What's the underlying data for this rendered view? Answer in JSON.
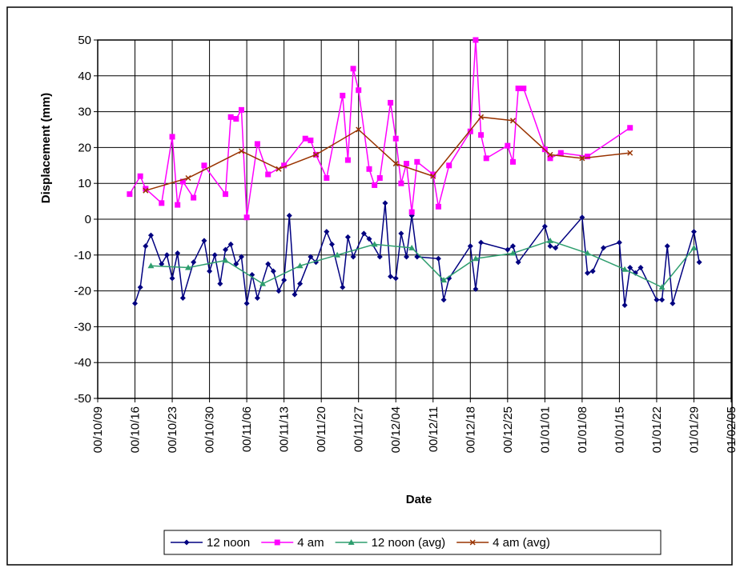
{
  "chart_data": {
    "type": "line",
    "xlabel": "Date",
    "ylabel": "Displacement (mm)",
    "xlim": [
      "00/10/09",
      "01/02/05"
    ],
    "xticks": [
      "00/10/09",
      "00/10/16",
      "00/10/23",
      "00/10/30",
      "00/11/06",
      "00/11/13",
      "00/11/20",
      "00/11/27",
      "00/12/04",
      "00/12/11",
      "00/12/18",
      "00/12/25",
      "01/01/01",
      "01/01/08",
      "01/01/15",
      "01/01/22",
      "01/01/29",
      "01/02/05"
    ],
    "ylim": [
      -50,
      50
    ],
    "yticks": [
      -50,
      -40,
      -30,
      -20,
      -10,
      0,
      10,
      20,
      30,
      40,
      50
    ],
    "grid": true,
    "series": [
      {
        "name": "12 noon",
        "color": "#000080",
        "marker": "diamond",
        "x": [
          "00/10/16",
          "00/10/17",
          "00/10/18",
          "00/10/19",
          "00/10/21",
          "00/10/22",
          "00/10/23",
          "00/10/24",
          "00/10/25",
          "00/10/27",
          "00/10/29",
          "00/10/30",
          "00/10/31",
          "00/11/01",
          "00/11/02",
          "00/11/03",
          "00/11/04",
          "00/11/05",
          "00/11/06",
          "00/11/07",
          "00/11/08",
          "00/11/10",
          "00/11/11",
          "00/11/12",
          "00/11/13",
          "00/11/14",
          "00/11/15",
          "00/11/16",
          "00/11/18",
          "00/11/19",
          "00/11/21",
          "00/11/22",
          "00/11/24",
          "00/11/25",
          "00/11/26",
          "00/11/28",
          "00/11/29",
          "00/12/01",
          "00/12/02",
          "00/12/03",
          "00/12/04",
          "00/12/05",
          "00/12/06",
          "00/12/07",
          "00/12/08",
          "00/12/12",
          "00/12/13",
          "00/12/14",
          "00/12/18",
          "00/12/19",
          "00/12/20",
          "00/12/25",
          "00/12/26",
          "00/12/27",
          "01/01/01",
          "01/01/02",
          "01/01/03",
          "01/01/08",
          "01/01/09",
          "01/01/10",
          "01/01/12",
          "01/01/15",
          "01/01/16",
          "01/01/17",
          "01/01/18",
          "01/01/19",
          "01/01/22",
          "01/01/23",
          "01/01/24",
          "01/01/25",
          "01/01/29",
          "01/01/30"
        ],
        "values": [
          -23.5,
          -19,
          -7.5,
          -4.5,
          -12.5,
          -10,
          -16.5,
          -9.5,
          -22,
          -12,
          -6,
          -14.5,
          -10,
          -18,
          -8.5,
          -7,
          -12.5,
          -10.5,
          -23.5,
          -15.5,
          -22,
          -12.5,
          -14.5,
          -20,
          -17,
          1,
          -21,
          -18,
          -10.5,
          -12,
          -3.5,
          -7,
          -19,
          -5,
          -10.5,
          -4,
          -5.5,
          -10.5,
          4.5,
          -16,
          -16.5,
          -4,
          -10.5,
          1,
          -10.5,
          -11,
          -22.5,
          -16.5,
          -7.5,
          -19.5,
          -6.5,
          -8.5,
          -7.5,
          -12,
          -2,
          -7.5,
          -8,
          0.5,
          -15,
          -14.5,
          -8,
          -6.5,
          -24,
          -13.5,
          -15,
          -13.5,
          -22.5,
          -22.5,
          -7.5,
          -23.5,
          -3.5,
          -12
        ]
      },
      {
        "name": "4 am",
        "color": "#ff00ff",
        "marker": "square",
        "x": [
          "00/10/15",
          "00/10/17",
          "00/10/18",
          "00/10/21",
          "00/10/23",
          "00/10/24",
          "00/10/25",
          "00/10/27",
          "00/10/29",
          "00/11/02",
          "00/11/03",
          "00/11/04",
          "00/11/05",
          "00/11/06",
          "00/11/08",
          "00/11/10",
          "00/11/13",
          "00/11/17",
          "00/11/18",
          "00/11/19",
          "00/11/21",
          "00/11/24",
          "00/11/25",
          "00/11/26",
          "00/11/27",
          "00/11/29",
          "00/11/30",
          "00/12/01",
          "00/12/03",
          "00/12/04",
          "00/12/05",
          "00/12/06",
          "00/12/07",
          "00/12/08",
          "00/12/11",
          "00/12/12",
          "00/12/14",
          "00/12/18",
          "00/12/19",
          "00/12/20",
          "00/12/21",
          "00/12/25",
          "00/12/26",
          "00/12/27",
          "00/12/28",
          "01/01/01",
          "01/01/02",
          "01/01/04",
          "01/01/09",
          "01/01/17"
        ],
        "values": [
          7,
          12,
          8.5,
          4.5,
          23,
          4,
          10.5,
          6,
          15,
          7,
          28.5,
          28,
          30.5,
          0.5,
          21,
          12.5,
          15,
          22.5,
          22,
          18,
          11.5,
          34.5,
          16.5,
          42,
          36,
          14,
          9.5,
          11.5,
          32.5,
          22.5,
          10,
          15.5,
          2,
          16,
          12.5,
          3.5,
          15,
          24.5,
          50,
          23.5,
          17,
          20.5,
          16,
          36.5,
          36.5,
          19.5,
          17,
          18.5,
          17.5,
          25.5
        ]
      },
      {
        "name": "12 noon (avg)",
        "color": "#2e9e6e",
        "marker": "triangle",
        "x": [
          "00/10/19",
          "00/10/26",
          "00/11/02",
          "00/11/09",
          "00/11/16",
          "00/11/23",
          "00/11/30",
          "00/12/07",
          "00/12/13",
          "00/12/19",
          "00/12/26",
          "01/01/02",
          "01/01/09",
          "01/01/16",
          "01/01/23",
          "01/01/29"
        ],
        "values": [
          -13,
          -13.5,
          -11.5,
          -18,
          -13,
          -10,
          -7,
          -8,
          -17,
          -11,
          -9.5,
          -6,
          -9.5,
          -14,
          -19,
          -8
        ]
      },
      {
        "name": "4 am (avg)",
        "color": "#993300",
        "marker": "cross",
        "x": [
          "00/10/18",
          "00/10/26",
          "00/11/05",
          "00/11/12",
          "00/11/19",
          "00/11/27",
          "00/12/04",
          "00/12/11",
          "00/12/20",
          "00/12/26",
          "01/01/02",
          "01/01/08",
          "01/01/17"
        ],
        "values": [
          8,
          11.5,
          19,
          14,
          18,
          25,
          15.5,
          12,
          28.5,
          27.5,
          18,
          17,
          18.5
        ]
      }
    ]
  }
}
